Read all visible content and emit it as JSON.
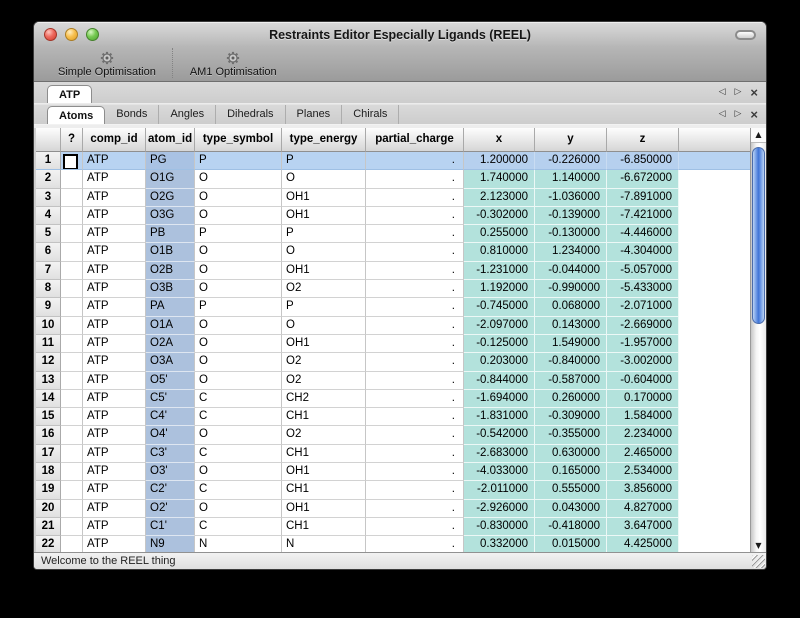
{
  "window": {
    "title": "Restraints Editor Especially Ligands (REEL)"
  },
  "toolbar": {
    "items": [
      {
        "label": "Simple Optimisation",
        "icon": "gear-icon"
      },
      {
        "label": "AM1 Optimisation",
        "icon": "gear-icon"
      }
    ]
  },
  "doc_tabs": {
    "tabs": [
      {
        "label": "ATP",
        "active": true
      }
    ],
    "controls": {
      "prev": "◁",
      "next": "▷",
      "close": "×"
    }
  },
  "section_tabs": {
    "tabs": [
      {
        "label": "Atoms",
        "active": true
      },
      {
        "label": "Bonds"
      },
      {
        "label": "Angles"
      },
      {
        "label": "Dihedrals"
      },
      {
        "label": "Planes"
      },
      {
        "label": "Chirals"
      }
    ],
    "controls": {
      "prev": "◁",
      "next": "▷",
      "close": "×"
    }
  },
  "table": {
    "columns": [
      "",
      "?",
      "comp_id",
      "atom_id",
      "type_symbol",
      "type_energy",
      "partial_charge",
      "x",
      "y",
      "z"
    ],
    "rows": [
      {
        "num": "1",
        "comp_id": "ATP",
        "atom_id": "PG",
        "type_symbol": "P",
        "type_energy": "P",
        "partial_charge": ".",
        "x": "1.200000",
        "y": "-0.226000",
        "z": "-6.850000",
        "selected": true
      },
      {
        "num": "2",
        "comp_id": "ATP",
        "atom_id": "O1G",
        "type_symbol": "O",
        "type_energy": "O",
        "partial_charge": ".",
        "x": "1.740000",
        "y": "1.140000",
        "z": "-6.672000"
      },
      {
        "num": "3",
        "comp_id": "ATP",
        "atom_id": "O2G",
        "type_symbol": "O",
        "type_energy": "OH1",
        "partial_charge": ".",
        "x": "2.123000",
        "y": "-1.036000",
        "z": "-7.891000"
      },
      {
        "num": "4",
        "comp_id": "ATP",
        "atom_id": "O3G",
        "type_symbol": "O",
        "type_energy": "OH1",
        "partial_charge": ".",
        "x": "-0.302000",
        "y": "-0.139000",
        "z": "-7.421000"
      },
      {
        "num": "5",
        "comp_id": "ATP",
        "atom_id": "PB",
        "type_symbol": "P",
        "type_energy": "P",
        "partial_charge": ".",
        "x": "0.255000",
        "y": "-0.130000",
        "z": "-4.446000"
      },
      {
        "num": "6",
        "comp_id": "ATP",
        "atom_id": "O1B",
        "type_symbol": "O",
        "type_energy": "O",
        "partial_charge": ".",
        "x": "0.810000",
        "y": "1.234000",
        "z": "-4.304000"
      },
      {
        "num": "7",
        "comp_id": "ATP",
        "atom_id": "O2B",
        "type_symbol": "O",
        "type_energy": "OH1",
        "partial_charge": ".",
        "x": "-1.231000",
        "y": "-0.044000",
        "z": "-5.057000"
      },
      {
        "num": "8",
        "comp_id": "ATP",
        "atom_id": "O3B",
        "type_symbol": "O",
        "type_energy": "O2",
        "partial_charge": ".",
        "x": "1.192000",
        "y": "-0.990000",
        "z": "-5.433000"
      },
      {
        "num": "9",
        "comp_id": "ATP",
        "atom_id": "PA",
        "type_symbol": "P",
        "type_energy": "P",
        "partial_charge": ".",
        "x": "-0.745000",
        "y": "0.068000",
        "z": "-2.071000"
      },
      {
        "num": "10",
        "comp_id": "ATP",
        "atom_id": "O1A",
        "type_symbol": "O",
        "type_energy": "O",
        "partial_charge": ".",
        "x": "-2.097000",
        "y": "0.143000",
        "z": "-2.669000"
      },
      {
        "num": "11",
        "comp_id": "ATP",
        "atom_id": "O2A",
        "type_symbol": "O",
        "type_energy": "OH1",
        "partial_charge": ".",
        "x": "-0.125000",
        "y": "1.549000",
        "z": "-1.957000"
      },
      {
        "num": "12",
        "comp_id": "ATP",
        "atom_id": "O3A",
        "type_symbol": "O",
        "type_energy": "O2",
        "partial_charge": ".",
        "x": "0.203000",
        "y": "-0.840000",
        "z": "-3.002000"
      },
      {
        "num": "13",
        "comp_id": "ATP",
        "atom_id": "O5'",
        "type_symbol": "O",
        "type_energy": "O2",
        "partial_charge": ".",
        "x": "-0.844000",
        "y": "-0.587000",
        "z": "-0.604000"
      },
      {
        "num": "14",
        "comp_id": "ATP",
        "atom_id": "C5'",
        "type_symbol": "C",
        "type_energy": "CH2",
        "partial_charge": ".",
        "x": "-1.694000",
        "y": "0.260000",
        "z": "0.170000"
      },
      {
        "num": "15",
        "comp_id": "ATP",
        "atom_id": "C4'",
        "type_symbol": "C",
        "type_energy": "CH1",
        "partial_charge": ".",
        "x": "-1.831000",
        "y": "-0.309000",
        "z": "1.584000"
      },
      {
        "num": "16",
        "comp_id": "ATP",
        "atom_id": "O4'",
        "type_symbol": "O",
        "type_energy": "O2",
        "partial_charge": ".",
        "x": "-0.542000",
        "y": "-0.355000",
        "z": "2.234000"
      },
      {
        "num": "17",
        "comp_id": "ATP",
        "atom_id": "C3'",
        "type_symbol": "C",
        "type_energy": "CH1",
        "partial_charge": ".",
        "x": "-2.683000",
        "y": "0.630000",
        "z": "2.465000"
      },
      {
        "num": "18",
        "comp_id": "ATP",
        "atom_id": "O3'",
        "type_symbol": "O",
        "type_energy": "OH1",
        "partial_charge": ".",
        "x": "-4.033000",
        "y": "0.165000",
        "z": "2.534000"
      },
      {
        "num": "19",
        "comp_id": "ATP",
        "atom_id": "C2'",
        "type_symbol": "C",
        "type_energy": "CH1",
        "partial_charge": ".",
        "x": "-2.011000",
        "y": "0.555000",
        "z": "3.856000"
      },
      {
        "num": "20",
        "comp_id": "ATP",
        "atom_id": "O2'",
        "type_symbol": "O",
        "type_energy": "OH1",
        "partial_charge": ".",
        "x": "-2.926000",
        "y": "0.043000",
        "z": "4.827000"
      },
      {
        "num": "21",
        "comp_id": "ATP",
        "atom_id": "C1'",
        "type_symbol": "C",
        "type_energy": "CH1",
        "partial_charge": ".",
        "x": "-0.830000",
        "y": "-0.418000",
        "z": "3.647000"
      },
      {
        "num": "22",
        "comp_id": "ATP",
        "atom_id": "N9",
        "type_symbol": "N",
        "type_energy": "N",
        "partial_charge": ".",
        "x": "0.332000",
        "y": "0.015000",
        "z": "4.425000"
      }
    ]
  },
  "scrollbar": {
    "up": "▲",
    "down": "▼"
  },
  "status_bar": {
    "text": "Welcome to the REEL thing"
  },
  "colors": {
    "selection": "#b8d3f1",
    "selection_atom": "#a9c2e3",
    "selection_coord": "#b6d0ee",
    "atom_column": "#acc1dd",
    "coord_column": "#b3e2dc"
  }
}
